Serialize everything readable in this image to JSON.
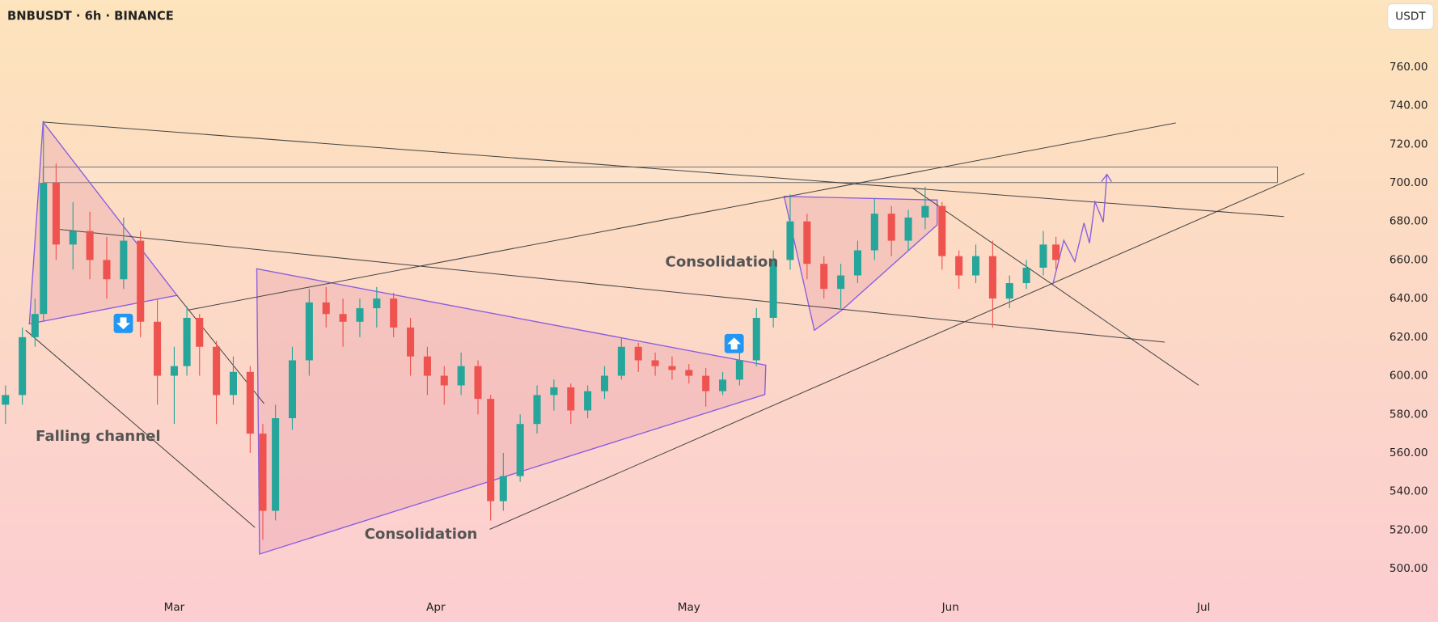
{
  "chart_data": {
    "type": "candlestick",
    "title": "BNBUSDT · 6h · BINANCE",
    "currency": "USDT",
    "up_color": "#26a69a",
    "down_color": "#ef5350",
    "annotations": [
      "Falling channel",
      "Consolidation",
      "Consolidation"
    ],
    "xlim": [
      -20.65,
      141.3
    ],
    "xticks": [
      {
        "value": 0,
        "label": "Mar"
      },
      {
        "value": 31,
        "label": "Apr"
      },
      {
        "value": 61,
        "label": "May"
      },
      {
        "value": 92,
        "label": "Jun"
      },
      {
        "value": 122,
        "label": "Jul"
      }
    ],
    "ylim": [
      488.1,
      794.7
    ],
    "yticks": [
      {
        "value": 500,
        "label": "500.00"
      },
      {
        "value": 520,
        "label": "520.00"
      },
      {
        "value": 540,
        "label": "540.00"
      },
      {
        "value": 560,
        "label": "560.00"
      },
      {
        "value": 580,
        "label": "580.00"
      },
      {
        "value": 600,
        "label": "600.00"
      },
      {
        "value": 620,
        "label": "620.00"
      },
      {
        "value": 640,
        "label": "640.00"
      },
      {
        "value": 660,
        "label": "660.00"
      },
      {
        "value": 680,
        "label": "680.00"
      },
      {
        "value": 700,
        "label": "700.00"
      },
      {
        "value": 720,
        "label": "720.00"
      },
      {
        "value": 740,
        "label": "740.00"
      },
      {
        "value": 760,
        "label": "760.00"
      }
    ],
    "x": [
      -20,
      -18,
      -16.5,
      -15.5,
      -14,
      -12,
      -10,
      -8,
      -6,
      -4,
      -2,
      0,
      1.5,
      3,
      5,
      7,
      9,
      10.5,
      12,
      14,
      16,
      18,
      20,
      22,
      24,
      26,
      28,
      30,
      32,
      34,
      36,
      37.5,
      39,
      41,
      43,
      45,
      47,
      49,
      51,
      53,
      55,
      57,
      59,
      61,
      63,
      65,
      67,
      69,
      71,
      73,
      75,
      77,
      79,
      81,
      83,
      85,
      87,
      89,
      91,
      93,
      95,
      97,
      99,
      101,
      103,
      104.5
    ],
    "open": [
      585,
      590,
      620,
      632,
      700,
      668,
      675,
      660,
      650,
      670,
      628,
      600,
      605,
      630,
      615,
      590,
      602,
      570,
      530,
      578,
      608,
      638,
      632,
      628,
      635,
      640,
      625,
      610,
      600,
      595,
      605,
      588,
      535,
      548,
      575,
      590,
      594,
      582,
      592,
      600,
      615,
      608,
      605,
      603,
      600,
      592,
      598,
      608,
      630,
      660,
      680,
      658,
      645,
      652,
      665,
      684,
      670,
      682,
      688,
      662,
      652,
      662,
      640,
      648,
      656,
      668
    ],
    "high": [
      595,
      625,
      640,
      732,
      710,
      690,
      685,
      672,
      682,
      675,
      640,
      615,
      636,
      632,
      618,
      610,
      605,
      575,
      585,
      615,
      645,
      646,
      640,
      640,
      646,
      643,
      630,
      615,
      605,
      612,
      608,
      590,
      560,
      580,
      595,
      598,
      596,
      595,
      605,
      620,
      617,
      612,
      610,
      606,
      604,
      602,
      612,
      635,
      665,
      694,
      684,
      662,
      658,
      670,
      692,
      688,
      686,
      698,
      690,
      665,
      668,
      670,
      652,
      660,
      675,
      672
    ],
    "low": [
      575,
      585,
      615,
      628,
      660,
      655,
      650,
      640,
      645,
      620,
      585,
      575,
      600,
      600,
      575,
      585,
      560,
      515,
      525,
      572,
      600,
      625,
      615,
      620,
      625,
      620,
      600,
      590,
      585,
      590,
      580,
      525,
      530,
      545,
      570,
      582,
      575,
      578,
      588,
      598,
      602,
      600,
      598,
      596,
      584,
      590,
      595,
      605,
      625,
      655,
      650,
      640,
      635,
      648,
      660,
      662,
      665,
      676,
      655,
      645,
      648,
      625,
      635,
      645,
      652,
      655
    ],
    "close": [
      590,
      620,
      632,
      700,
      668,
      675,
      660,
      650,
      670,
      628,
      600,
      605,
      630,
      615,
      590,
      602,
      570,
      530,
      578,
      608,
      638,
      632,
      628,
      635,
      640,
      625,
      610,
      600,
      595,
      605,
      588,
      535,
      548,
      575,
      590,
      594,
      582,
      592,
      600,
      615,
      608,
      605,
      603,
      600,
      592,
      598,
      608,
      630,
      660,
      680,
      658,
      645,
      652,
      665,
      684,
      670,
      682,
      688,
      662,
      652,
      662,
      640,
      648,
      656,
      668,
      660
    ]
  }
}
